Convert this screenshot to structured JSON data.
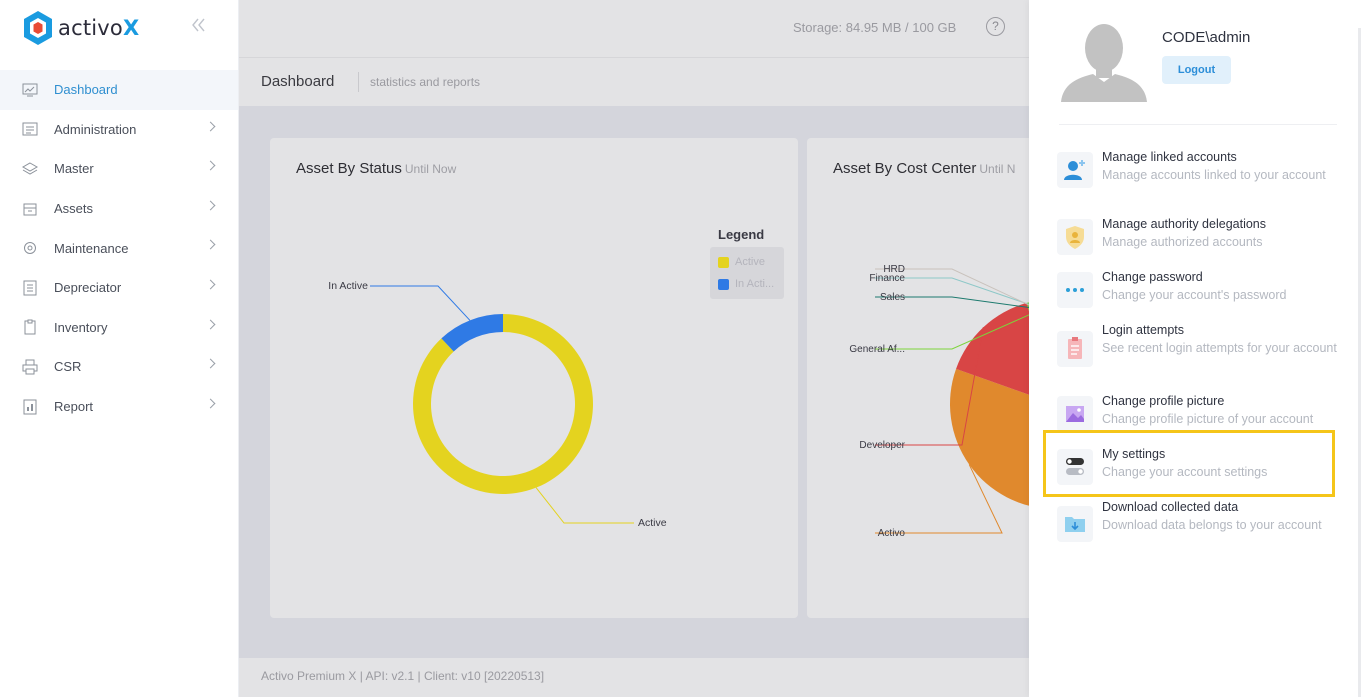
{
  "brand": {
    "name_prefix": "activo",
    "name_suffix": "X"
  },
  "sidebar": {
    "items": [
      {
        "label": "Dashboard",
        "icon": "monitor-chart-icon",
        "active": true
      },
      {
        "label": "Administration",
        "icon": "admin-list-icon"
      },
      {
        "label": "Master",
        "icon": "layers-icon"
      },
      {
        "label": "Assets",
        "icon": "box-icon"
      },
      {
        "label": "Maintenance",
        "icon": "gear-icon"
      },
      {
        "label": "Depreciator",
        "icon": "ledger-icon"
      },
      {
        "label": "Inventory",
        "icon": "clipboard-icon"
      },
      {
        "label": "CSR",
        "icon": "printer-icon"
      },
      {
        "label": "Report",
        "icon": "report-icon"
      }
    ]
  },
  "header": {
    "storage": "Storage: 84.95 MB / 100 GB",
    "help": "?"
  },
  "page": {
    "title": "Dashboard",
    "subtitle": "statistics and reports"
  },
  "cards": {
    "status": {
      "title": "Asset By Status",
      "until": "Until Now"
    },
    "cost_center": {
      "title": "Asset By Cost Center",
      "until": "Until N"
    }
  },
  "chart_data": [
    {
      "type": "pie",
      "title": "Asset By Status",
      "subtitle": "Until Now",
      "donut": true,
      "legend_title": "Legend",
      "legend_position": "right",
      "categories": [
        "Active",
        "In Active"
      ],
      "values": [
        88,
        12
      ],
      "colors": [
        "#e4d31f",
        "#2f7ae5"
      ],
      "legend_labels": [
        "Active",
        "In Acti..."
      ]
    },
    {
      "type": "pie",
      "title": "Asset By Cost Center",
      "subtitle": "Until N",
      "categories": [
        "Activo",
        "Developer",
        "General Af...",
        "Sales",
        "Finance",
        "HRD"
      ],
      "values": [
        40,
        20,
        15,
        8,
        5,
        4
      ],
      "colors": [
        "#e0892d",
        "#d84545",
        "#7dd43b",
        "#1d7a6e",
        "#8ec8c8",
        "#c9c2bc"
      ]
    }
  ],
  "footer": {
    "text": "Activo Premium X | API: v2.1 | Client: v10 [20220513]"
  },
  "panel": {
    "username": "CODE\\admin",
    "logout_label": "Logout",
    "menu": [
      {
        "title": "Manage linked accounts",
        "desc": "Manage accounts linked to your account",
        "icon": "user-plus-icon"
      },
      {
        "title": "Manage authority delegations",
        "desc": "Manage authorized accounts",
        "icon": "shield-user-icon"
      },
      {
        "title": "Change password",
        "desc": "Change your account's password",
        "icon": "dots-icon"
      },
      {
        "title": "Login attempts",
        "desc": "See recent login attempts for your account",
        "icon": "clipboard-list-icon"
      },
      {
        "title": "Change profile picture",
        "desc": "Change profile picture of your account",
        "icon": "image-icon"
      },
      {
        "title": "My settings",
        "desc": "Change your account settings",
        "icon": "toggle-icon"
      },
      {
        "title": "Download collected data",
        "desc": "Download data belongs to your account",
        "icon": "folder-download-icon"
      }
    ]
  }
}
